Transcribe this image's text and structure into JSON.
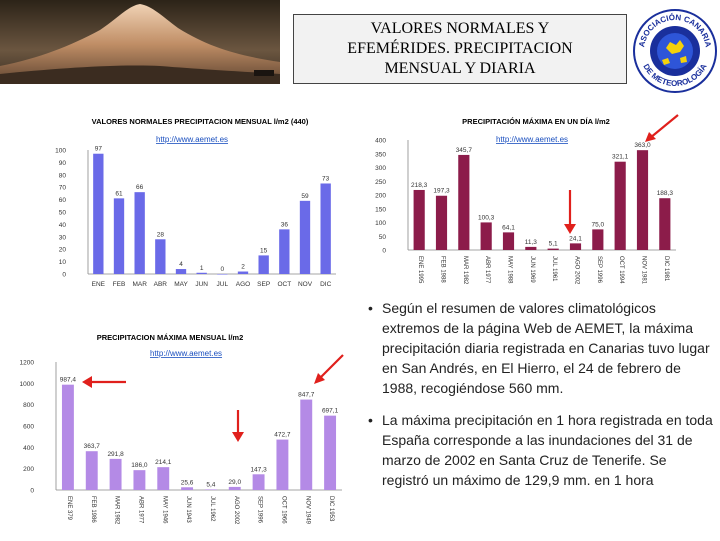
{
  "header": {
    "title_lines": [
      "VALORES NORMALES Y",
      "EFEMÉRIDES. PRECIPITACION",
      "MENSUAL Y DIARIA"
    ]
  },
  "logo": {
    "text_top": "ASOCIACIÓN CANARIA",
    "text_bottom": "DE METEOROLOGÍA"
  },
  "colors": {
    "bar_blue": "#6a6ae8",
    "bar_maroon": "#8c1c4a",
    "bar_violet": "#b48ae6",
    "arrow_red": "#e0201c",
    "link": "#1a4fbf"
  },
  "bullets": [
    "Según el resumen de valores climatológicos extremos de la página Web de AEMET, la máxima precipitación diaria registrada en Canarias tuvo lugar en San Andrés, en El Hierro, el 24 de febrero de 1988, recogiéndose 560 mm.",
    "La máxima precipitación en 1 hora registrada en toda España corresponde a las inundaciones del 31 de marzo de 2002 en Santa Cruz de Tenerife. Se registró un máximo de 129,9 mm. en 1 hora"
  ],
  "chart_data": [
    {
      "type": "bar",
      "title": "VALORES NORMALES PRECIPITACION MENSUAL l/m2 (440)",
      "source": "http://www.aemet.es",
      "categories": [
        "ENE",
        "FEB",
        "MAR",
        "ABR",
        "MAY",
        "JUN",
        "JUL",
        "AGO",
        "SEP",
        "OCT",
        "NOV",
        "DIC"
      ],
      "values": [
        97,
        61,
        66,
        28,
        4,
        1,
        0,
        2,
        15,
        36,
        59,
        73
      ],
      "value_labels": [
        "97",
        "61",
        "66",
        "28",
        "4",
        "1",
        "0",
        "2",
        "15",
        "36",
        "59",
        "73"
      ],
      "ylim": [
        0,
        100
      ],
      "yticks": [
        0,
        10,
        20,
        30,
        40,
        50,
        60,
        70,
        80,
        90,
        100
      ]
    },
    {
      "type": "bar",
      "title": "PRECIPITACIÓN MÁXIMA EN UN DÍA l/m2",
      "source": "http://www.aemet.es",
      "categories": [
        "ENE 1995",
        "FEB 1988",
        "MAR 1982",
        "ABR 1977",
        "MAY 1988",
        "JUN 1969",
        "JUL 1961",
        "AGO 2002",
        "SEP 1996",
        "OCT 1994",
        "NOV 1981",
        "DIC 1981"
      ],
      "values": [
        218.3,
        197.3,
        345.7,
        100.3,
        64.1,
        11.3,
        5.1,
        24.1,
        75.0,
        321.1,
        363.0,
        188.3
      ],
      "value_labels": [
        "218,3",
        "197,3",
        "345,7",
        "100,3",
        "64,1",
        "11,3",
        "5,1",
        "24,1",
        "75,0",
        "321,1",
        "363,0",
        "188,3"
      ],
      "ylim": [
        0,
        400
      ],
      "yticks": [
        0,
        50,
        100,
        150,
        200,
        250,
        300,
        350,
        400
      ]
    },
    {
      "type": "bar",
      "title": "PRECIPITACION MÁXIMA MENSUAL l/m2",
      "source": "http://www.aemet.es",
      "categories": [
        "ENE 379",
        "FEB 1986",
        "MAR 1982",
        "ABR 1977",
        "MAY 1946",
        "JUN 1943",
        "JUL 1962",
        "AGO 2002",
        "SEP 1996",
        "OCT 1966",
        "NOV 1949",
        "DIC 1953"
      ],
      "values": [
        987.4,
        363.7,
        291.8,
        186.0,
        214.1,
        25.6,
        5.4,
        29.0,
        147.3,
        472.7,
        847.7,
        697.1
      ],
      "value_labels": [
        "987,4",
        "363,7",
        "291,8",
        "186,0",
        "214,1",
        "25,6",
        "5,4",
        "29,0",
        "147,3",
        "472,7",
        "847,7",
        "697,1"
      ],
      "ylim": [
        0,
        1200
      ],
      "yticks": [
        0,
        200,
        400,
        600,
        800,
        1000,
        1200
      ]
    }
  ]
}
